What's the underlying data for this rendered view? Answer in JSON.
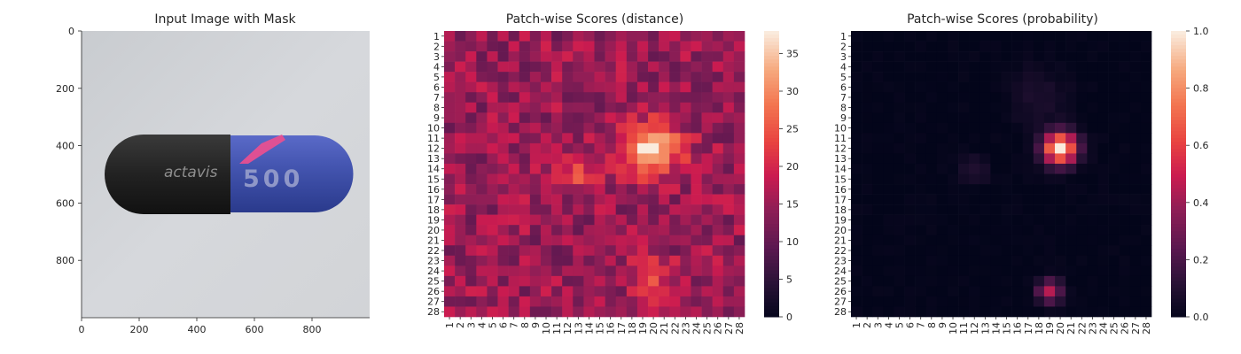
{
  "chart_data": [
    {
      "type": "image",
      "title": "Input Image with Mask",
      "xlim": [
        0,
        1000
      ],
      "ylim": [
        1000,
        0
      ],
      "xticks": [
        0,
        200,
        400,
        600,
        800
      ],
      "yticks": [
        0,
        200,
        400,
        600,
        800
      ],
      "capsule_text": {
        "brand": "actavis",
        "number": "500"
      }
    },
    {
      "type": "heatmap",
      "title": "Patch-wise Scores (distance)",
      "rows": 28,
      "cols": 28,
      "row_labels": [
        "1",
        "2",
        "3",
        "4",
        "5",
        "6",
        "7",
        "8",
        "9",
        "10",
        "11",
        "12",
        "13",
        "14",
        "15",
        "16",
        "17",
        "18",
        "19",
        "20",
        "21",
        "22",
        "23",
        "24",
        "25",
        "26",
        "27",
        "28"
      ],
      "col_labels": [
        "1",
        "2",
        "3",
        "4",
        "5",
        "6",
        "7",
        "8",
        "9",
        "10",
        "11",
        "12",
        "13",
        "14",
        "15",
        "16",
        "17",
        "18",
        "19",
        "20",
        "21",
        "22",
        "23",
        "24",
        "25",
        "26",
        "27",
        "28"
      ],
      "vmin": 0,
      "vmax": 38,
      "colorbar_ticks": [
        0,
        5,
        10,
        15,
        20,
        25,
        30,
        35
      ],
      "base": 15,
      "hotspots": [
        {
          "row": 12,
          "col": 20,
          "peak": 38,
          "spread": 1.7
        },
        {
          "row": 14,
          "col": 13,
          "peak": 24,
          "spread": 1.3
        },
        {
          "row": 25,
          "col": 20,
          "peak": 22,
          "spread": 1.5
        }
      ]
    },
    {
      "type": "heatmap",
      "title": "Patch-wise Scores (probability)",
      "rows": 28,
      "cols": 28,
      "row_labels": [
        "1",
        "2",
        "3",
        "4",
        "5",
        "6",
        "7",
        "8",
        "9",
        "10",
        "11",
        "12",
        "13",
        "14",
        "15",
        "16",
        "17",
        "18",
        "19",
        "20",
        "21",
        "22",
        "23",
        "24",
        "25",
        "26",
        "27",
        "28"
      ],
      "col_labels": [
        "1",
        "2",
        "3",
        "4",
        "5",
        "6",
        "7",
        "8",
        "9",
        "10",
        "11",
        "12",
        "13",
        "14",
        "15",
        "16",
        "17",
        "18",
        "19",
        "20",
        "21",
        "22",
        "23",
        "24",
        "25",
        "26",
        "27",
        "28"
      ],
      "vmin": 0.0,
      "vmax": 1.0,
      "colorbar_ticks": [
        "0.0",
        "0.2",
        "0.4",
        "0.6",
        "0.8",
        "1.0"
      ],
      "base": 0.0,
      "hotspots": [
        {
          "row": 12,
          "col": 20,
          "peak": 1.0,
          "spread": 1.1
        },
        {
          "row": 26,
          "col": 19,
          "peak": 0.45,
          "spread": 0.8
        },
        {
          "row": 7,
          "col": 18,
          "peak": 0.08,
          "spread": 2.0
        },
        {
          "row": 14,
          "col": 12,
          "peak": 0.1,
          "spread": 1.0
        }
      ]
    }
  ]
}
